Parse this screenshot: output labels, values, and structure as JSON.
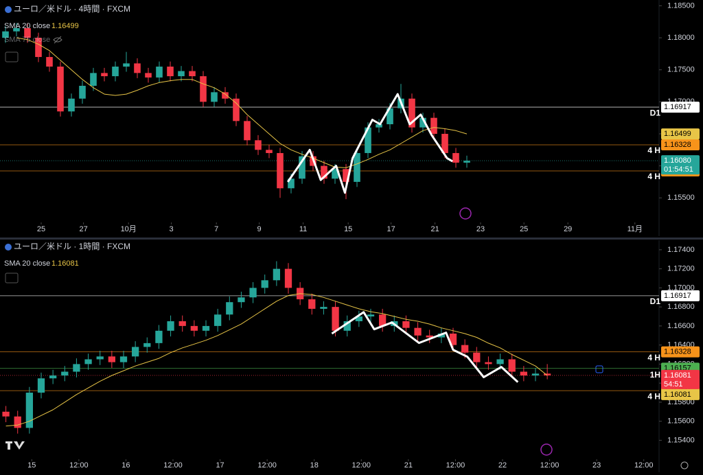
{
  "chart_data": [
    {
      "type": "candlestick",
      "title": "ユーロ／米ドル · 4時間 · FXCM",
      "up_color": "#26a69a",
      "down_color": "#f23645",
      "xlim": [
        0,
        60
      ],
      "ylim": [
        1.1516,
        1.1859
      ],
      "yticks": [
        {
          "value": 1.155,
          "label": "1.15500"
        },
        {
          "value": 1.16,
          "label": "1.16000"
        },
        {
          "value": 1.165,
          "label": "1.16500"
        },
        {
          "value": 1.17,
          "label": "1.17000"
        },
        {
          "value": 1.175,
          "label": "1.17500"
        },
        {
          "value": 1.18,
          "label": "1.18000"
        },
        {
          "value": 1.185,
          "label": "1.18500"
        }
      ],
      "xticks": [
        {
          "value": 3.75,
          "label": "25"
        },
        {
          "value": 7.6,
          "label": "27"
        },
        {
          "value": 11.7,
          "label": "10月"
        },
        {
          "value": 15.6,
          "label": "3"
        },
        {
          "value": 19.7,
          "label": "7"
        },
        {
          "value": 23.6,
          "label": "9"
        },
        {
          "value": 27.6,
          "label": "11"
        },
        {
          "value": 31.7,
          "label": "15"
        },
        {
          "value": 35.6,
          "label": "17"
        },
        {
          "value": 39.6,
          "label": "21"
        },
        {
          "value": 43.75,
          "label": "23"
        },
        {
          "value": 47.7,
          "label": "25"
        },
        {
          "value": 51.7,
          "label": "29"
        },
        {
          "value": 57.8,
          "label": "11月"
        }
      ],
      "x": [
        0.5,
        1.5,
        2.5,
        3.5,
        4.5,
        5.5,
        6.5,
        7.5,
        8.5,
        9.5,
        10.5,
        11.5,
        12.5,
        13.5,
        14.5,
        15.5,
        16.5,
        17.5,
        18.5,
        19.5,
        20.5,
        21.5,
        22.5,
        23.5,
        24.5,
        25.5,
        26.5,
        27.5,
        28.5,
        29.5,
        30.5,
        31.5,
        32.5,
        33.5,
        34.5,
        35.5,
        36.5,
        37.5,
        38.5,
        39.5,
        40.5,
        41.5,
        42.5
      ],
      "open": [
        1.18,
        1.181,
        1.1815,
        1.18,
        1.177,
        1.1755,
        1.1685,
        1.1705,
        1.1725,
        1.1745,
        1.174,
        1.1755,
        1.176,
        1.1745,
        1.1738,
        1.1755,
        1.174,
        1.1748,
        1.174,
        1.17,
        1.1715,
        1.1705,
        1.167,
        1.164,
        1.1625,
        1.162,
        1.1565,
        1.158,
        1.1615,
        1.16,
        1.158,
        1.1595,
        1.1575,
        1.162,
        1.166,
        1.1665,
        1.169,
        1.1705,
        1.166,
        1.1675,
        1.165,
        1.162,
        1.1605
      ],
      "high": [
        1.1818,
        1.1823,
        1.1823,
        1.1808,
        1.1778,
        1.1763,
        1.1713,
        1.1733,
        1.1753,
        1.1753,
        1.1763,
        1.1778,
        1.1768,
        1.1753,
        1.1763,
        1.1763,
        1.1756,
        1.1756,
        1.1748,
        1.1723,
        1.1723,
        1.1713,
        1.1678,
        1.1648,
        1.1633,
        1.1628,
        1.1588,
        1.1623,
        1.1623,
        1.1608,
        1.1603,
        1.1603,
        1.1628,
        1.1668,
        1.1673,
        1.1698,
        1.1728,
        1.1713,
        1.1683,
        1.1683,
        1.1658,
        1.1628,
        1.1616
      ],
      "low": [
        1.1792,
        1.1802,
        1.1792,
        1.1762,
        1.1747,
        1.1677,
        1.1677,
        1.1697,
        1.1717,
        1.1732,
        1.1732,
        1.1747,
        1.1737,
        1.173,
        1.173,
        1.1732,
        1.1732,
        1.1732,
        1.1692,
        1.1692,
        1.1697,
        1.1662,
        1.1632,
        1.1617,
        1.1612,
        1.155,
        1.1557,
        1.1572,
        1.1592,
        1.1572,
        1.1572,
        1.1548,
        1.1567,
        1.1612,
        1.1652,
        1.1657,
        1.1682,
        1.1652,
        1.1652,
        1.1642,
        1.1612,
        1.1597,
        1.1597
      ],
      "close": [
        1.181,
        1.1815,
        1.18,
        1.177,
        1.1755,
        1.1685,
        1.1705,
        1.1725,
        1.1745,
        1.174,
        1.1755,
        1.176,
        1.1745,
        1.1738,
        1.1755,
        1.174,
        1.1748,
        1.174,
        1.17,
        1.1715,
        1.1705,
        1.167,
        1.164,
        1.1625,
        1.162,
        1.1565,
        1.158,
        1.1615,
        1.16,
        1.158,
        1.1595,
        1.1575,
        1.162,
        1.166,
        1.1665,
        1.169,
        1.1705,
        1.166,
        1.1675,
        1.165,
        1.162,
        1.1605,
        1.1608
      ],
      "series": [
        {
          "name": "SMA 20 close",
          "color": "#e8c547",
          "value_label": "1.16499",
          "values": [
            null,
            1.18,
            1.1797,
            1.179,
            1.178,
            1.1765,
            1.175,
            1.1735,
            1.1722,
            1.1712,
            1.171,
            1.1712,
            1.1718,
            1.1725,
            1.173,
            1.1733,
            1.1735,
            1.1735,
            1.1728,
            1.1722,
            1.1712,
            1.1698,
            1.168,
            1.1665,
            1.165,
            1.1635,
            1.1625,
            1.1618,
            1.1612,
            1.1605,
            1.1598,
            1.1597,
            1.1603,
            1.161,
            1.1618,
            1.1625,
            1.1635,
            1.1645,
            1.1655,
            1.166,
            1.1658,
            1.1655,
            1.16499
          ]
        },
        {
          "name": "SMA 75 close",
          "visible": false
        }
      ],
      "zigzag": {
        "color": "#ffffff",
        "x": [
          26.2,
          28.2,
          29.2,
          30.6,
          31.4,
          32.1,
          33.9,
          34.6,
          36.2,
          37.3,
          38.3,
          39.3,
          40.7,
          41.2
        ],
        "values": [
          1.1575,
          1.1625,
          1.1578,
          1.16,
          1.1558,
          1.1612,
          1.1672,
          1.1665,
          1.1712,
          1.1665,
          1.168,
          1.1648,
          1.1612,
          1.1607
        ]
      },
      "levels": [
        {
          "value": 1.16917,
          "label": "1.16917",
          "tag": "D1",
          "color": "#ffffff"
        },
        {
          "value": 1.16328,
          "label": "1.16328",
          "tag": "4 H",
          "color": "#f7931a"
        },
        {
          "value": 1.15921,
          "label": "1.15921",
          "tag": "4 H",
          "color": "#f7931a"
        }
      ],
      "last": {
        "value": 1.1608,
        "label": "1.16080",
        "countdown": "01:54:51",
        "color": "#26a69a"
      }
    },
    {
      "type": "candlestick",
      "title": "ユーロ／米ドル · 1時間 · FXCM",
      "up_color": "#26a69a",
      "down_color": "#f23645",
      "xlim": [
        0,
        56
      ],
      "ylim": [
        1.1523,
        1.175
      ],
      "yticks": [
        {
          "value": 1.154,
          "label": "1.15400"
        },
        {
          "value": 1.156,
          "label": "1.15600"
        },
        {
          "value": 1.158,
          "label": "1.15800"
        },
        {
          "value": 1.16,
          "label": "1.16000"
        },
        {
          "value": 1.162,
          "label": "1.16200"
        },
        {
          "value": 1.164,
          "label": "1.16400"
        },
        {
          "value": 1.166,
          "label": "1.16600"
        },
        {
          "value": 1.168,
          "label": "1.16800"
        },
        {
          "value": 1.17,
          "label": "1.17000"
        },
        {
          "value": 1.172,
          "label": "1.17200"
        },
        {
          "value": 1.174,
          "label": "1.17400"
        }
      ],
      "xticks": [
        {
          "value": 2.7,
          "label": "15"
        },
        {
          "value": 6.7,
          "label": "12:00"
        },
        {
          "value": 10.7,
          "label": "16"
        },
        {
          "value": 14.7,
          "label": "12:00"
        },
        {
          "value": 18.7,
          "label": "17"
        },
        {
          "value": 22.7,
          "label": "12:00"
        },
        {
          "value": 26.7,
          "label": "18"
        },
        {
          "value": 30.7,
          "label": "12:00"
        },
        {
          "value": 34.7,
          "label": "21"
        },
        {
          "value": 38.7,
          "label": "12:00"
        },
        {
          "value": 42.7,
          "label": "22"
        },
        {
          "value": 46.7,
          "label": "12:00"
        },
        {
          "value": 50.7,
          "label": "23"
        },
        {
          "value": 54.7,
          "label": "12:00"
        }
      ],
      "x": [
        0.5,
        1.5,
        2.5,
        3.5,
        4.5,
        5.5,
        6.5,
        7.5,
        8.5,
        9.5,
        10.5,
        11.5,
        12.5,
        13.5,
        14.5,
        15.5,
        16.5,
        17.5,
        18.5,
        19.5,
        20.5,
        21.5,
        22.5,
        23.5,
        24.5,
        25.5,
        26.5,
        27.5,
        28.5,
        29.5,
        30.5,
        31.5,
        32.5,
        33.5,
        34.5,
        35.5,
        36.5,
        37.5,
        38.5,
        39.5,
        40.5,
        41.5,
        42.5,
        43.5,
        44.5,
        45.5,
        46.5
      ],
      "open": [
        1.157,
        1.1565,
        1.1553,
        1.159,
        1.1605,
        1.1608,
        1.1612,
        1.162,
        1.1625,
        1.1628,
        1.1622,
        1.1628,
        1.1638,
        1.1642,
        1.1655,
        1.1665,
        1.166,
        1.1655,
        1.166,
        1.1672,
        1.1685,
        1.169,
        1.17,
        1.1708,
        1.172,
        1.17,
        1.1688,
        1.1678,
        1.168,
        1.1655,
        1.1665,
        1.167,
        1.1672,
        1.166,
        1.1665,
        1.1658,
        1.165,
        1.1648,
        1.1652,
        1.164,
        1.1632,
        1.1622,
        1.162,
        1.1625,
        1.1612,
        1.1608,
        1.161
      ],
      "high": [
        1.1576,
        1.1571,
        1.1596,
        1.1611,
        1.1614,
        1.1618,
        1.1626,
        1.1631,
        1.1634,
        1.1634,
        1.1634,
        1.1644,
        1.1648,
        1.1661,
        1.1671,
        1.1671,
        1.1666,
        1.1666,
        1.1678,
        1.1691,
        1.1696,
        1.1706,
        1.1714,
        1.1728,
        1.1726,
        1.1706,
        1.1694,
        1.1686,
        1.1686,
        1.1671,
        1.1676,
        1.1678,
        1.1678,
        1.1671,
        1.1671,
        1.1664,
        1.1656,
        1.1658,
        1.1658,
        1.1646,
        1.1638,
        1.1628,
        1.1631,
        1.1631,
        1.1618,
        1.1616,
        1.162
      ],
      "low": [
        1.1559,
        1.1547,
        1.1547,
        1.1584,
        1.1599,
        1.1602,
        1.1606,
        1.1614,
        1.1619,
        1.1616,
        1.1616,
        1.1622,
        1.1632,
        1.1636,
        1.1649,
        1.1654,
        1.1649,
        1.1649,
        1.1654,
        1.1666,
        1.1679,
        1.1684,
        1.1694,
        1.1702,
        1.1694,
        1.1682,
        1.1672,
        1.1672,
        1.1649,
        1.1649,
        1.1659,
        1.1664,
        1.1654,
        1.1654,
        1.1652,
        1.1644,
        1.1642,
        1.1642,
        1.1634,
        1.1626,
        1.1616,
        1.1614,
        1.1614,
        1.1606,
        1.1602,
        1.1602,
        1.1604
      ],
      "close": [
        1.1565,
        1.1553,
        1.159,
        1.1605,
        1.1608,
        1.1612,
        1.162,
        1.1625,
        1.1628,
        1.1622,
        1.1628,
        1.1638,
        1.1642,
        1.1655,
        1.1665,
        1.166,
        1.1655,
        1.166,
        1.1672,
        1.1685,
        1.169,
        1.17,
        1.1708,
        1.172,
        1.17,
        1.1688,
        1.1678,
        1.168,
        1.1655,
        1.1665,
        1.167,
        1.1672,
        1.166,
        1.1665,
        1.1658,
        1.165,
        1.1648,
        1.1652,
        1.164,
        1.1632,
        1.1622,
        1.162,
        1.1625,
        1.1612,
        1.1608,
        1.161,
        1.16081
      ],
      "series": [
        {
          "name": "SMA 20 close",
          "color": "#e8c547",
          "value_label": "1.16081",
          "values": [
            1.1555,
            1.1556,
            1.156,
            1.1566,
            1.1572,
            1.158,
            1.1588,
            1.1595,
            1.1602,
            1.1608,
            1.1613,
            1.1618,
            1.1622,
            1.1626,
            1.1632,
            1.1637,
            1.1641,
            1.1645,
            1.165,
            1.1656,
            1.1662,
            1.167,
            1.1678,
            1.1686,
            1.1692,
            1.1694,
            1.1693,
            1.169,
            1.1686,
            1.1682,
            1.1678,
            1.1675,
            1.1673,
            1.167,
            1.1667,
            1.1665,
            1.1662,
            1.1658,
            1.1655,
            1.1652,
            1.1648,
            1.1642,
            1.1637,
            1.163,
            1.1624,
            1.1618,
            1.16081
          ]
        }
      ],
      "zigzag": {
        "color": "#ffffff",
        "x": [
          28.2,
          30.9,
          31.8,
          33.3,
          35.6,
          37.9,
          38.5,
          39.7,
          41.1,
          42.6,
          44.0
        ],
        "values": [
          1.1652,
          1.16745,
          1.16565,
          1.16637,
          1.16422,
          1.1653,
          1.1635,
          1.16278,
          1.16062,
          1.1617,
          1.16011
        ]
      },
      "levels": [
        {
          "value": 1.16917,
          "label": "1.16917",
          "tag": "D1",
          "color": "#ffffff"
        },
        {
          "value": 1.16328,
          "label": "1.16328",
          "tag": "4 H",
          "color": "#f7931a"
        },
        {
          "value": 1.16157,
          "label": "1.16157",
          "color": "#4caf50"
        },
        {
          "value": 1.15921,
          "label": "1.15921",
          "tag": "4 H",
          "color": "#f7931a"
        }
      ],
      "last": {
        "value": 1.16081,
        "label": "1.16081",
        "countdown": "54:51",
        "tag": "1H",
        "color": "#f23645"
      }
    }
  ]
}
